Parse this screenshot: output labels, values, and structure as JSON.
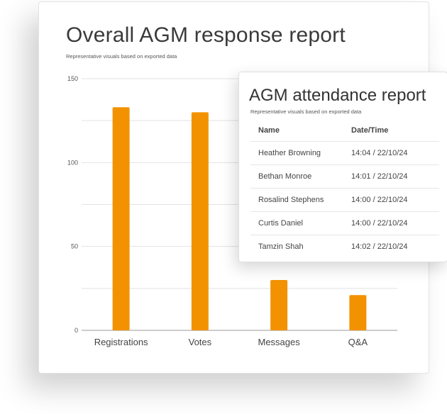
{
  "main_card": {
    "title": "Overall AGM response report",
    "subtitle": "Representative visuals based on exported data"
  },
  "chart_data": {
    "type": "bar",
    "categories": [
      "Registrations",
      "Votes",
      "Messages",
      "Q&A"
    ],
    "values": [
      133,
      130,
      30,
      21
    ],
    "ylim": [
      0,
      150
    ],
    "yticks": [
      0,
      50,
      100,
      150
    ],
    "grid": true,
    "bar_color": "#f39200",
    "xlabel": "",
    "ylabel": ""
  },
  "attendance_card": {
    "title": "AGM attendance report",
    "subtitle": "Representative visuals based on exported data",
    "columns": [
      "Name",
      "Date/Time"
    ],
    "rows": [
      {
        "name": "Heather Browning",
        "datetime": "14:04  /  22/10/24"
      },
      {
        "name": "Bethan Monroe",
        "datetime": "14:01  /  22/10/24"
      },
      {
        "name": "Rosalind Stephens",
        "datetime": "14:00  /  22/10/24"
      },
      {
        "name": "Curtis Daniel",
        "datetime": "14:00  /  22/10/24"
      },
      {
        "name": "Tamzin Shah",
        "datetime": "14:02  /  22/10/24"
      }
    ]
  }
}
